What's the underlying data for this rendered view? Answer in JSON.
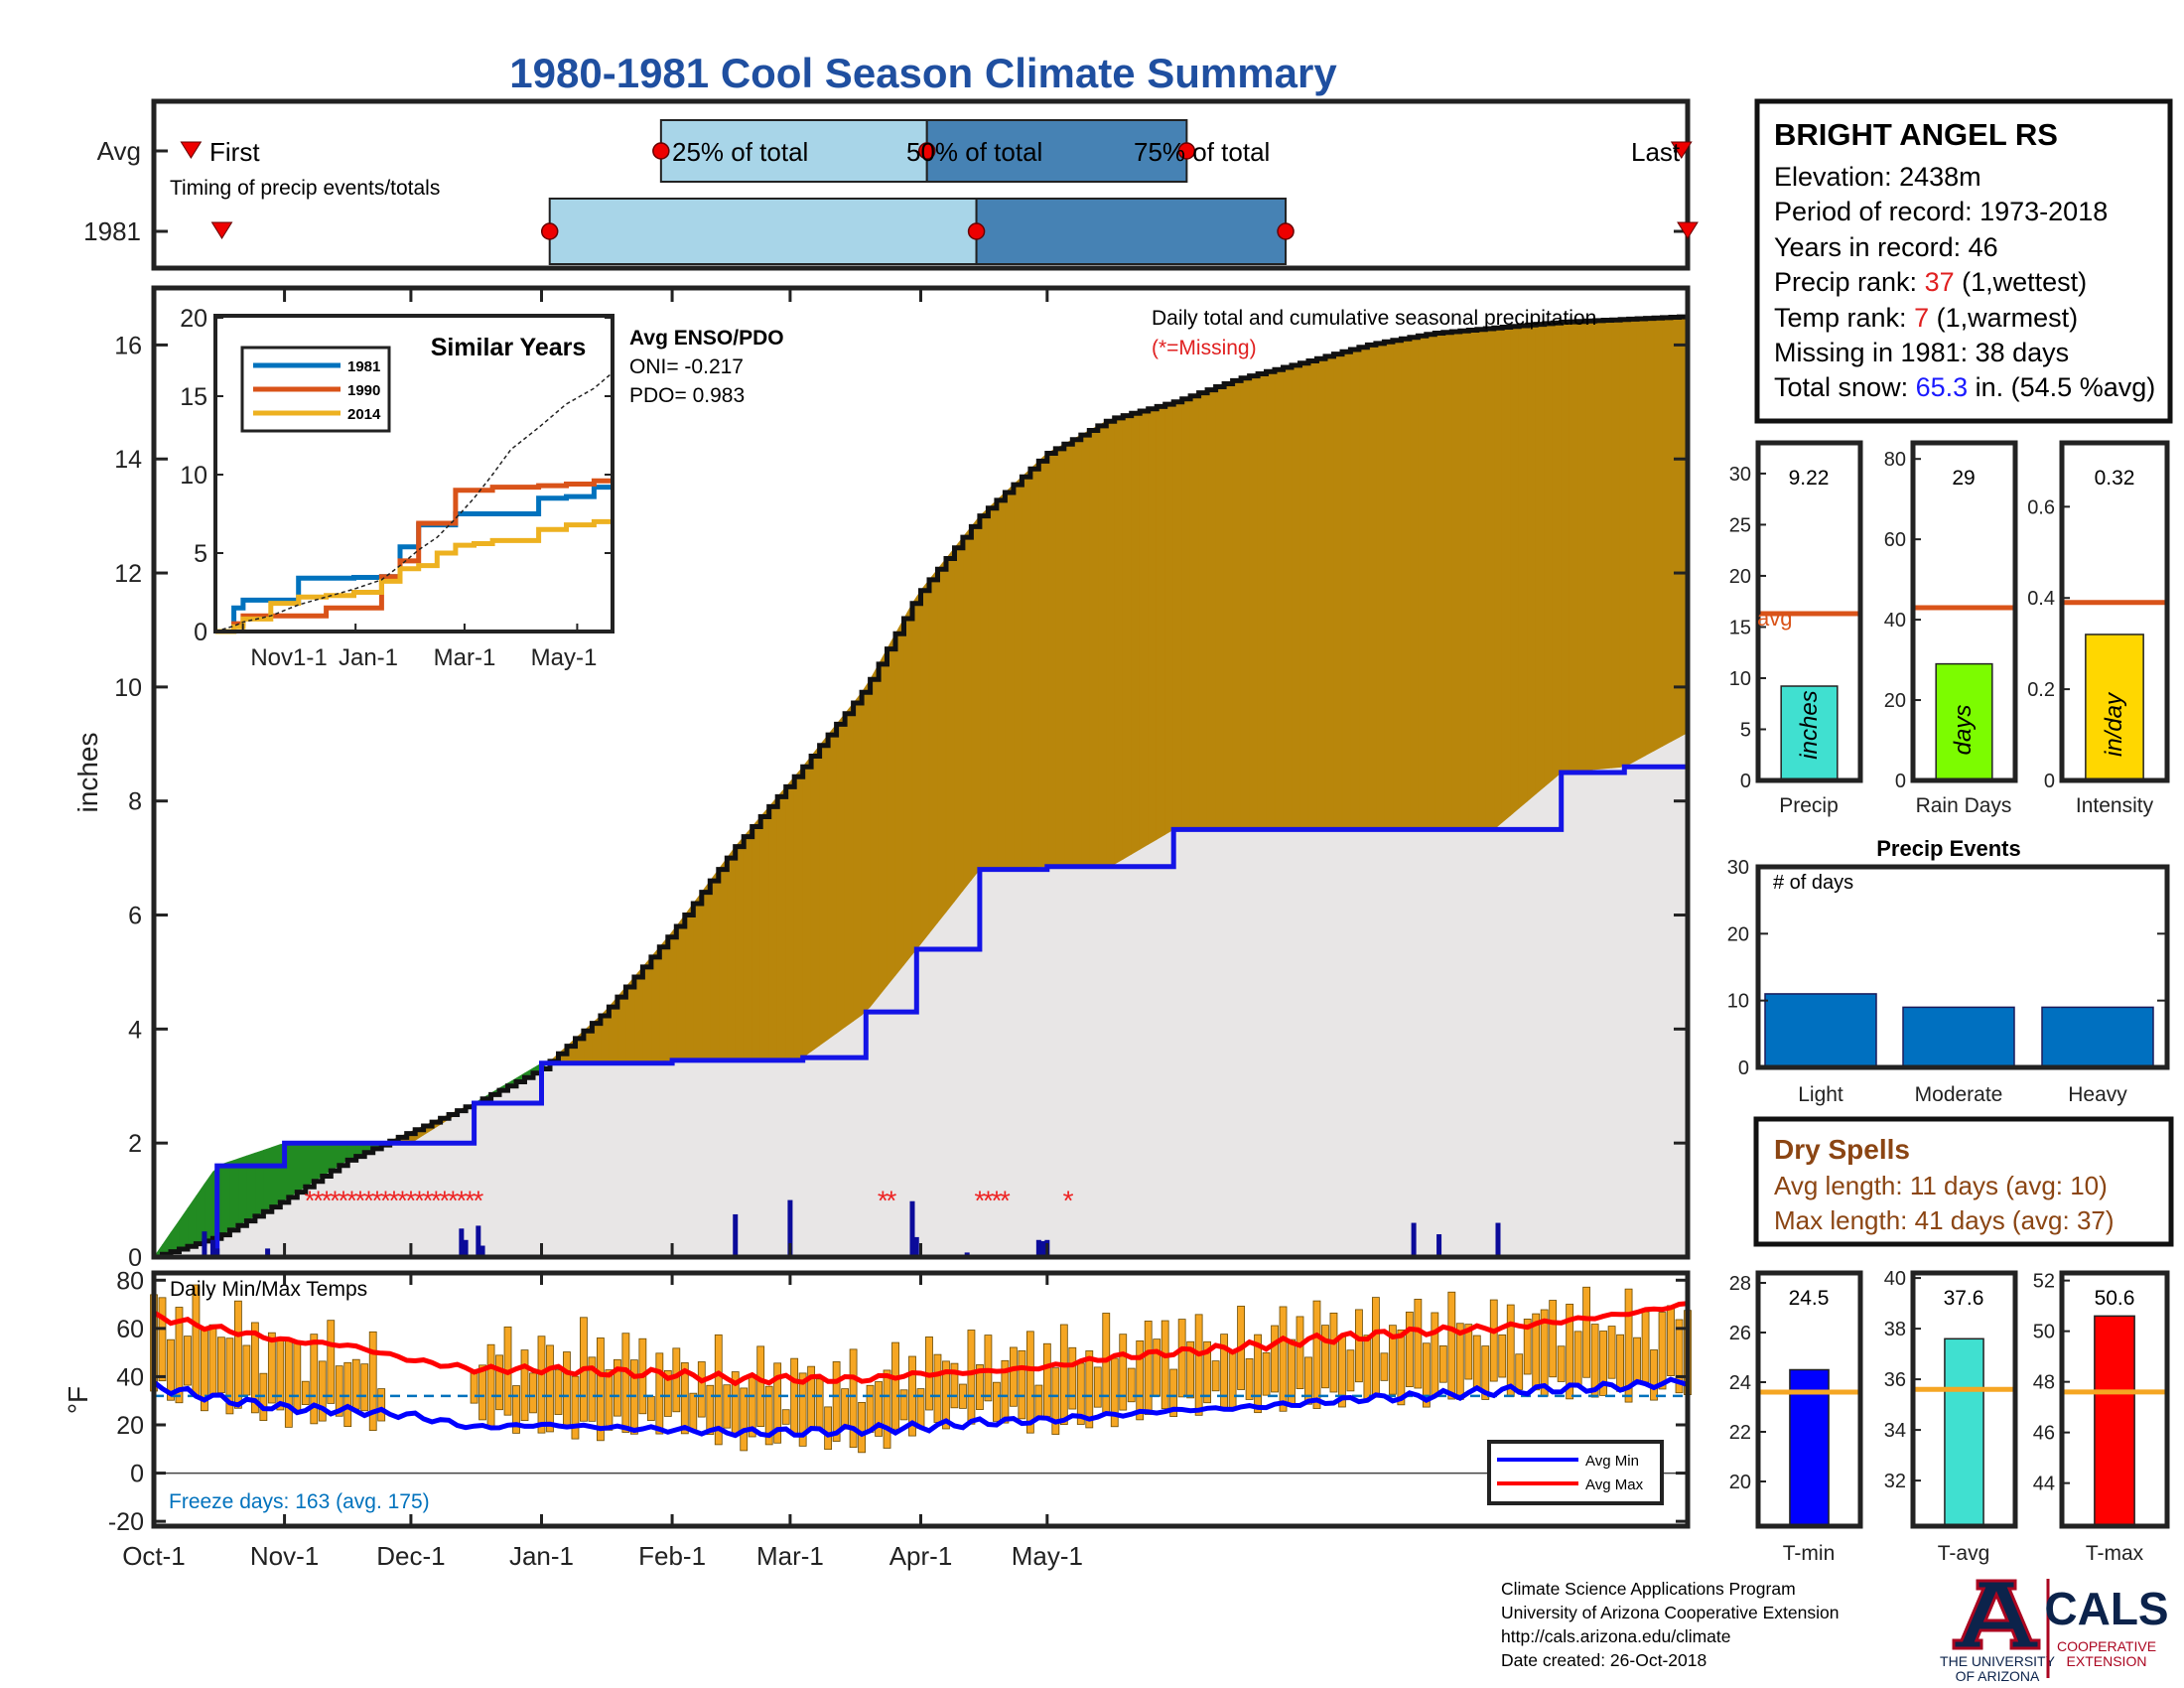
{
  "title": "1980-1981 Cool Season Climate Summary",
  "timing": {
    "row_labels": [
      "Avg",
      "1981"
    ],
    "first_label": "First",
    "last_label": "Last",
    "caption": "Timing of precip events/totals",
    "pct_labels": [
      "25% of total",
      "50% of total",
      "75% of total"
    ],
    "avg": {
      "first": "Oct-7",
      "p25": "Dec-22",
      "p50": "Feb-3",
      "p75": "Mar-17",
      "last": "Jun-5"
    },
    "y1981": {
      "first": "Oct-12",
      "p25": "Dec-4",
      "p50": "Feb-11",
      "p75": "Apr-2",
      "last": "Jun-6"
    }
  },
  "station": {
    "name": "BRIGHT ANGEL RS",
    "elevation": "Elevation: 2438m",
    "period": "Period of record: 1973-2018",
    "years": "Years in record: 46",
    "precip_rank_label": "Precip rank: ",
    "precip_rank_value": "37",
    "precip_rank_suffix": " (1,wettest)",
    "temp_rank_label": "Temp rank: ",
    "temp_rank_value": "7",
    "temp_rank_suffix": " (1,warmest)",
    "missing": "Missing in 1981: 38 days",
    "snow_label": "Total snow: ",
    "snow_value": "65.3",
    "snow_suffix": " in. (54.5 %avg)"
  },
  "main": {
    "ylabel": "inches",
    "subtitle": "Daily total and cumulative seasonal precipitation",
    "missing_note": "(*=Missing)",
    "enso_title": "Avg ENSO/PDO",
    "oni": "ONI= -0.217",
    "pdo": "PDO= 0.983",
    "x_ticks": [
      "Oct-1",
      "Nov-1",
      "Dec-1",
      "Jan-1",
      "Feb-1",
      "Mar-1",
      "Apr-1",
      "May-1"
    ]
  },
  "inset": {
    "title": "Similar Years",
    "legend": [
      "1981",
      "1990",
      "2014"
    ],
    "x_ticks": [
      "Nov1-1",
      "Jan-1",
      "Mar-1",
      "May-1"
    ]
  },
  "bars_panel": {
    "labels": [
      "Precip",
      "Rain Days",
      "Intensity"
    ],
    "values_text": [
      "9.22",
      "29",
      "0.32"
    ],
    "units": [
      "inches",
      "days",
      "in/day"
    ],
    "avg_label": "avg"
  },
  "events": {
    "title": "Precip Events",
    "ylabel": "# of days",
    "categories": [
      "Light",
      "Moderate",
      "Heavy"
    ]
  },
  "dry": {
    "title": "Dry Spells",
    "avg": "Avg length: 11 days (avg: 10)",
    "max": "Max length: 41 days (avg: 37)"
  },
  "temps": {
    "title": "Daily Min/Max Temps",
    "ylabel": "°F",
    "freeze": "Freeze days: 163 (avg. 175)",
    "legend": [
      "Avg Min",
      "Avg Max"
    ]
  },
  "temp_bars": {
    "labels": [
      "T-min",
      "T-avg",
      "T-max"
    ],
    "values_text": [
      "24.5",
      "37.6",
      "50.6"
    ]
  },
  "footer": {
    "line1": "Climate Science Applications Program",
    "line2": "University of Arizona Cooperative Extension",
    "line3": "http://cals.arizona.edu/climate",
    "line4": "Date created: 26-Oct-2018"
  },
  "logos": {
    "ua_line1": "THE UNIVERSITY",
    "ua_line2": "OF ARIZONA",
    "cals": "CALS",
    "cals_line1": "COOPERATIVE",
    "cals_line2": "EXTENSION"
  },
  "chart_data": [
    {
      "type": "area",
      "name": "cumulative precipitation",
      "ylim": [
        0,
        17
      ],
      "yticks": [
        0,
        2,
        4,
        6,
        8,
        10,
        12,
        14,
        16
      ],
      "x_days_from_oct1": [
        0,
        15,
        31,
        46,
        61,
        76,
        92,
        107,
        123,
        138,
        154,
        169,
        181,
        196,
        212,
        227,
        242,
        257,
        273,
        288,
        303,
        318,
        334,
        349,
        364
      ],
      "series": [
        {
          "name": "Avg",
          "values": [
            0,
            0.35,
            1.0,
            1.7,
            2.2,
            2.7,
            3.3,
            4.3,
            5.7,
            7.2,
            8.6,
            10.0,
            11.6,
            13.0,
            14.1,
            14.7,
            15.0,
            15.4,
            15.7,
            16.0,
            16.2,
            16.3,
            16.4,
            16.45,
            16.5
          ]
        },
        {
          "name": "1981",
          "values": [
            0,
            1.6,
            2.0,
            2.0,
            2.0,
            2.7,
            3.4,
            3.4,
            3.45,
            3.45,
            3.5,
            4.3,
            5.4,
            6.8,
            6.85,
            6.85,
            7.5,
            7.5,
            7.5,
            7.5,
            7.5,
            7.5,
            8.5,
            8.6,
            9.2
          ]
        }
      ],
      "daily_precip": [
        {
          "day": 12,
          "value": 0.45
        },
        {
          "day": 14,
          "value": 0.3
        },
        {
          "day": 15,
          "value": 0.15
        },
        {
          "day": 27,
          "value": 0.15
        },
        {
          "day": 73,
          "value": 0.5
        },
        {
          "day": 74,
          "value": 0.3
        },
        {
          "day": 77,
          "value": 0.55
        },
        {
          "day": 78,
          "value": 0.2
        },
        {
          "day": 138,
          "value": 0.75
        },
        {
          "day": 151,
          "value": 1.0
        },
        {
          "day": 180,
          "value": 0.98
        },
        {
          "day": 181,
          "value": 0.35
        },
        {
          "day": 193,
          "value": 0.08
        },
        {
          "day": 210,
          "value": 0.3
        },
        {
          "day": 211,
          "value": 0.28
        },
        {
          "day": 212,
          "value": 0.3
        },
        {
          "day": 299,
          "value": 0.6
        },
        {
          "day": 305,
          "value": 0.4
        },
        {
          "day": 319,
          "value": 0.6
        }
      ],
      "missing_days": [
        37,
        39,
        41,
        43,
        45,
        47,
        49,
        51,
        53,
        55,
        57,
        59,
        61,
        63,
        65,
        67,
        69,
        71,
        73,
        75,
        77,
        173,
        175,
        196,
        198,
        200,
        202,
        217
      ]
    },
    {
      "type": "line",
      "name": "similar years",
      "ylim": [
        0,
        20
      ],
      "yticks": [
        0,
        5,
        10,
        15,
        20
      ],
      "x_days_from_oct1": [
        0,
        10,
        15,
        30,
        45,
        60,
        75,
        90,
        100,
        110,
        120,
        130,
        140,
        150,
        160,
        175,
        190,
        205,
        215
      ],
      "series": [
        {
          "name": "1981",
          "values": [
            0,
            1.5,
            2.0,
            2.0,
            3.4,
            3.4,
            3.45,
            3.5,
            5.4,
            6.8,
            6.8,
            7.5,
            7.5,
            7.5,
            7.5,
            8.5,
            8.6,
            9.2,
            9.2
          ]
        },
        {
          "name": "1990",
          "values": [
            0,
            0.5,
            1.0,
            1.0,
            1.0,
            1.5,
            1.5,
            3.5,
            4.5,
            6.9,
            6.9,
            9.0,
            9.0,
            9.2,
            9.2,
            9.3,
            9.4,
            9.6,
            9.6
          ]
        },
        {
          "name": "2014",
          "values": [
            0,
            0.3,
            0.8,
            1.8,
            2.2,
            2.3,
            2.5,
            3.2,
            4.0,
            4.2,
            5.0,
            5.5,
            5.6,
            5.8,
            5.8,
            6.5,
            6.8,
            7.0,
            7.0
          ]
        },
        {
          "name": "Avg",
          "values": [
            0,
            0.35,
            0.6,
            1.0,
            1.7,
            2.2,
            2.7,
            3.3,
            4.2,
            5.2,
            6.0,
            7.2,
            8.5,
            10.0,
            11.6,
            13.0,
            14.5,
            15.5,
            16.5
          ]
        }
      ]
    },
    {
      "type": "bar",
      "name": "precip",
      "categories": [
        "Precip"
      ],
      "values": [
        9.22
      ],
      "avg": 16.3,
      "ylim": [
        0,
        33
      ],
      "yticks": [
        0,
        5,
        10,
        15,
        20,
        25,
        30
      ]
    },
    {
      "type": "bar",
      "name": "rain days",
      "categories": [
        "Rain Days"
      ],
      "values": [
        29
      ],
      "avg": 43,
      "ylim": [
        0,
        84
      ],
      "yticks": [
        0,
        20,
        40,
        60,
        80
      ]
    },
    {
      "type": "bar",
      "name": "intensity",
      "categories": [
        "Intensity"
      ],
      "values": [
        0.32
      ],
      "avg": 0.39,
      "ylim": [
        0,
        0.74
      ],
      "yticks": [
        0,
        0.2,
        0.4,
        0.6
      ]
    },
    {
      "type": "bar",
      "name": "precip events",
      "categories": [
        "Light",
        "Moderate",
        "Heavy"
      ],
      "values": [
        11,
        9,
        9
      ],
      "ylim": [
        0,
        30
      ],
      "yticks": [
        0,
        10,
        20,
        30
      ]
    },
    {
      "type": "line",
      "name": "daily temps",
      "ylim": [
        -22,
        83
      ],
      "yticks": [
        -20,
        0,
        20,
        40,
        60,
        80
      ],
      "freeze_line": 32,
      "x_days_from_oct1": [
        0,
        15,
        31,
        46,
        61,
        76,
        92,
        107,
        123,
        138,
        154,
        169,
        181,
        196,
        212,
        227,
        242,
        257,
        273,
        288,
        303,
        318,
        334,
        349,
        364
      ],
      "series": [
        {
          "name": "Avg Max",
          "values": [
            65,
            60,
            55,
            53,
            47,
            43,
            43,
            42,
            41,
            39,
            39,
            39,
            41,
            42,
            44,
            48,
            50,
            52,
            55,
            57,
            59,
            60,
            63,
            66,
            70
          ]
        },
        {
          "name": "Avg Min",
          "values": [
            36,
            31,
            27,
            26,
            24,
            19,
            20,
            19,
            18,
            17,
            17,
            18,
            19,
            21,
            22,
            24,
            26,
            27,
            29,
            31,
            32,
            34,
            35,
            36,
            38
          ]
        },
        {
          "name": "1981 Max",
          "values": [
            68,
            62,
            52,
            50,
            38,
            50,
            48,
            52,
            44,
            42,
            40,
            38,
            46,
            48,
            50,
            52,
            58,
            54,
            62,
            60,
            64,
            60,
            66,
            62,
            64
          ]
        },
        {
          "name": "1981 Min",
          "values": [
            34,
            30,
            24,
            24,
            20,
            24,
            20,
            18,
            22,
            14,
            16,
            12,
            20,
            26,
            20,
            24,
            28,
            30,
            30,
            34,
            32,
            36,
            36,
            34,
            36
          ]
        }
      ]
    },
    {
      "type": "bar",
      "name": "temperature",
      "categories": [
        "T-min",
        "T-avg",
        "T-max"
      ],
      "series": [
        {
          "name": "T-min",
          "value": 24.5,
          "avg": 23.6,
          "ylim": [
            18.2,
            28.4
          ],
          "yticks": [
            20,
            22,
            24,
            26,
            28
          ]
        },
        {
          "name": "T-avg",
          "value": 37.6,
          "avg": 35.6,
          "ylim": [
            30.2,
            40.2
          ],
          "yticks": [
            32,
            34,
            36,
            38,
            40
          ]
        },
        {
          "name": "T-max",
          "value": 50.6,
          "avg": 47.6,
          "ylim": [
            42.3,
            52.3
          ],
          "yticks": [
            44,
            46,
            48,
            50,
            52
          ]
        }
      ]
    }
  ]
}
